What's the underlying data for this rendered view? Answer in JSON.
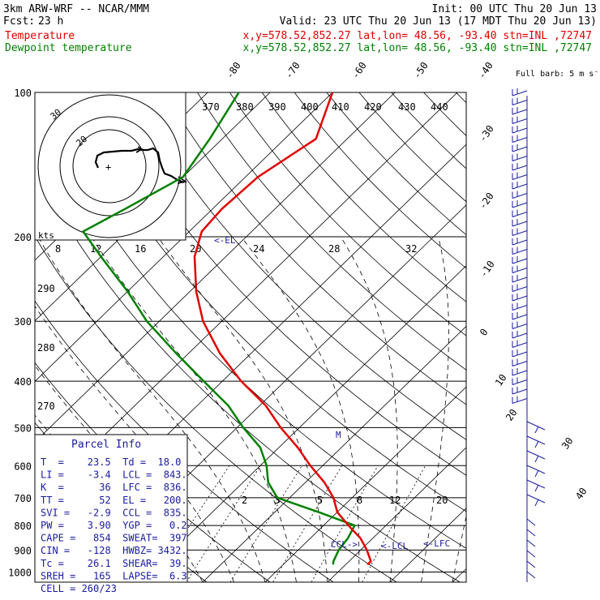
{
  "header": {
    "model": "3km ARW-WRF -- NCAR/MMM",
    "init": "Init: 00 UTC Thu 20 Jun 13",
    "fcst_label": "Fcst:",
    "fcst_value": "23 h",
    "valid": "Valid: 23 UTC Thu 20 Jun 13 (17 MDT Thu 20 Jun 13)",
    "temp_label": "Temperature",
    "temp_info": "x,y=578.52,852.27   lat,lon= 48.56, -93.40   stn=INL ,72747",
    "dew_label": "Dewpoint temperature",
    "dew_info": "x,y=578.52,852.27   lat,lon= 48.56, -93.40   stn=INL ,72747"
  },
  "colors": {
    "temperature": "#e00000",
    "dewpoint": "#008000",
    "annotation": "#1a1aa0",
    "grid": "#000000"
  },
  "chart_data": {
    "type": "line",
    "title": "",
    "y_axis": "pressure (hPa), log scale",
    "pressure_levels": [
      100,
      200,
      300,
      400,
      500,
      600,
      700,
      800,
      900,
      1000
    ],
    "isotherm_labels": [
      "-80",
      "-70",
      "-60",
      "-50",
      "-40",
      "-30",
      "-20",
      "-10",
      "0",
      "10",
      "20",
      "30",
      "40"
    ],
    "theta_labels": [
      "370",
      "380",
      "390",
      "400",
      "410",
      "420",
      "430",
      "440",
      "290",
      "280",
      "270"
    ],
    "mixing_ratio_labels": [
      "2",
      "3",
      "5",
      "8",
      "12",
      "20"
    ],
    "hodograph_speed_labels": [
      "8",
      "12",
      "16",
      "20",
      "24",
      "28",
      "32"
    ],
    "hodograph_ring_labels": [
      "30",
      "20"
    ],
    "kts_label": "kts",
    "series": [
      {
        "name": "Temperature",
        "points": [
          [
            100,
            -60
          ],
          [
            125,
            -55
          ],
          [
            150,
            -58
          ],
          [
            175,
            -58.5
          ],
          [
            195,
            -58
          ],
          [
            220,
            -55
          ],
          [
            260,
            -49
          ],
          [
            300,
            -43
          ],
          [
            350,
            -35
          ],
          [
            400,
            -27
          ],
          [
            450,
            -19
          ],
          [
            500,
            -13
          ],
          [
            550,
            -7
          ],
          [
            600,
            -2
          ],
          [
            650,
            3
          ],
          [
            700,
            7
          ],
          [
            750,
            10
          ],
          [
            800,
            14
          ],
          [
            850,
            18
          ],
          [
            900,
            21
          ],
          [
            950,
            23.5
          ],
          [
            965,
            23.5
          ]
        ]
      },
      {
        "name": "Dewpoint temperature",
        "points": [
          [
            100,
            -75
          ],
          [
            125,
            -72
          ],
          [
            150,
            -70
          ],
          [
            175,
            -74
          ],
          [
            195,
            -77
          ],
          [
            220,
            -70
          ],
          [
            260,
            -60
          ],
          [
            300,
            -52
          ],
          [
            350,
            -42
          ],
          [
            400,
            -33
          ],
          [
            450,
            -25
          ],
          [
            500,
            -19
          ],
          [
            550,
            -13
          ],
          [
            600,
            -9
          ],
          [
            650,
            -6
          ],
          [
            700,
            -2
          ],
          [
            750,
            7
          ],
          [
            800,
            15
          ],
          [
            850,
            16
          ],
          [
            900,
            16.5
          ],
          [
            950,
            17.5
          ],
          [
            965,
            18
          ]
        ]
      }
    ],
    "parcel_annotations": [
      "EL",
      "CCL",
      "LCL",
      "LFC",
      "M"
    ],
    "wind_label": "Full barb: 5 m s⁻¹"
  },
  "parcel_info": {
    "title": "Parcel Info",
    "rows": [
      "T  =    23.5  Td =  18.0",
      "LI =    -3.4  LCL =  843.",
      "K  =      36  LFC =  836.",
      "TT =      52  EL =   200.",
      "SVI =   -2.9  CCL =  835.",
      "PW =    3.90  YGP =   0.2",
      "CAPE =   854  SWEAT=  397",
      "CIN =   -128  HWBZ= 3432.",
      "Tc =    26.1  SHEAR=  39.",
      "SREH =   165  LAPSE=  6.3",
      "CELL = 260/23"
    ]
  }
}
